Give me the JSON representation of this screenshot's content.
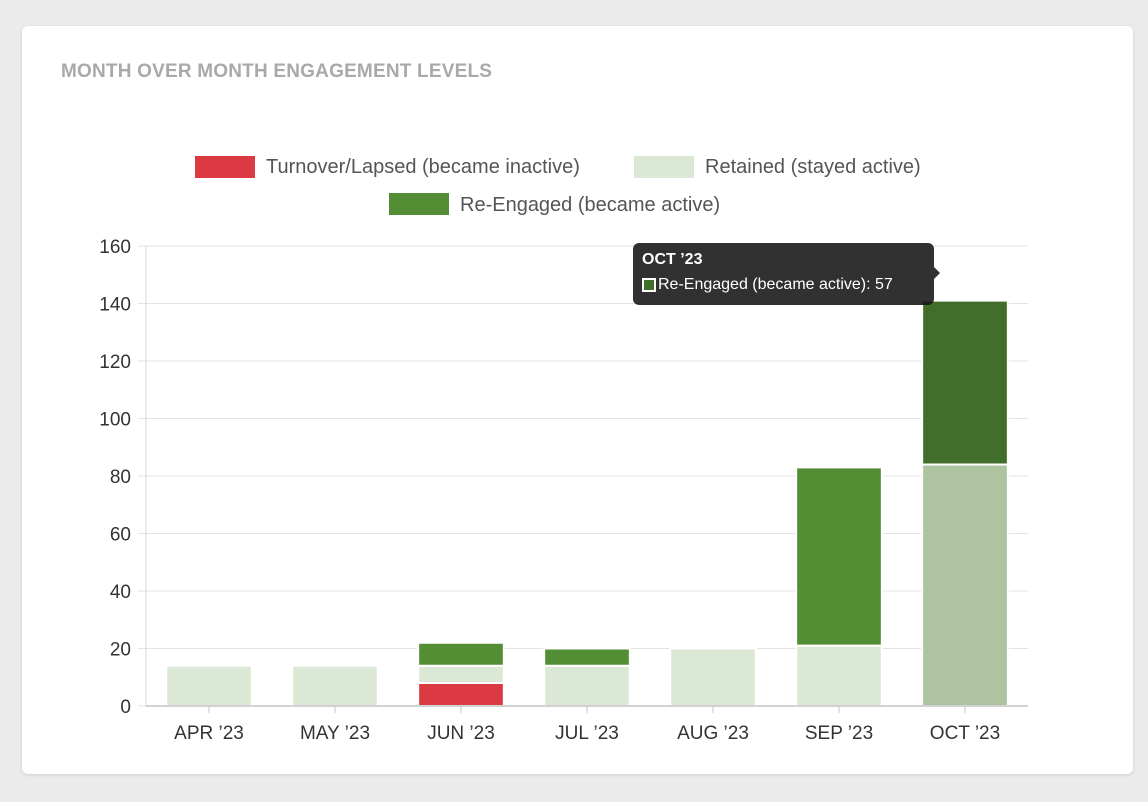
{
  "chart_data": {
    "type": "bar",
    "stacked": true,
    "title": "MONTH OVER MONTH ENGAGEMENT LEVELS",
    "categories": [
      "APR ’23",
      "MAY ’23",
      "JUN ’23",
      "JUL ’23",
      "AUG ’23",
      "SEP ’23",
      "OCT ’23"
    ],
    "series": [
      {
        "name": "Turnover/Lapsed (became inactive)",
        "color": "#dc3a43",
        "values": [
          0,
          0,
          8,
          0,
          0,
          0,
          0
        ]
      },
      {
        "name": "Retained (stayed active)",
        "color": "#dce8d6",
        "values": [
          14,
          14,
          6,
          14,
          20,
          21,
          84
        ]
      },
      {
        "name": "Re-Engaged (became active)",
        "color": "#538e35",
        "values": [
          0,
          0,
          8,
          6,
          0,
          62,
          57
        ]
      }
    ],
    "ylim": [
      0,
      160
    ],
    "yticks": [
      0,
      20,
      40,
      60,
      80,
      100,
      120,
      140,
      160
    ],
    "grid": true,
    "legend": "top",
    "highlight": {
      "category_index": 6,
      "colors": {
        "Retained (stayed active)": "#aec4a1",
        "Re-Engaged (became active)": "#416e29"
      }
    }
  },
  "tooltip": {
    "title": "OCT ’23",
    "label": "Re-Engaged (became active): 57",
    "swatch_color": "#416e29"
  }
}
